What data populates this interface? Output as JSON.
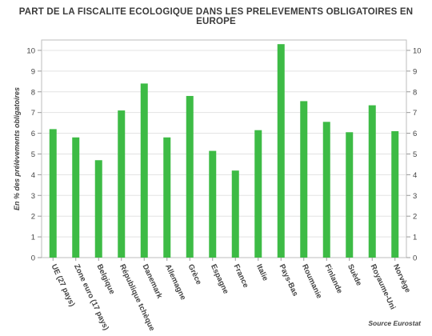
{
  "chart_data": {
    "type": "bar",
    "title": "PART DE LA FISCALITE ECOLOGIQUE DANS LES PRELEVEMENTS OBLIGATOIRES EN EUROPE",
    "ylabel": "En % des prélèvements obligatoires",
    "xlabel": "",
    "source": "Source Eurostat",
    "ylim": [
      0,
      10.5
    ],
    "yticks": [
      0,
      1,
      2,
      3,
      4,
      5,
      6,
      7,
      8,
      9,
      10
    ],
    "grid": true,
    "axis_both_sides": true,
    "bar_color": "#3dbb45",
    "categories": [
      "UE (27 pays)",
      "Zone euro (17 pays)",
      "Belgique",
      "République tchèque",
      "Danemark",
      "Allemagne",
      "Grèce",
      "Espagne",
      "France",
      "Italie",
      "Pays-Bas",
      "Roumanie",
      "Finlande",
      "Suède",
      "Royaume-Uni",
      "Norvège"
    ],
    "values": [
      6.2,
      5.8,
      4.7,
      7.1,
      8.4,
      5.8,
      7.8,
      5.15,
      4.2,
      6.15,
      10.3,
      7.55,
      6.55,
      6.05,
      7.35,
      6.1
    ]
  }
}
